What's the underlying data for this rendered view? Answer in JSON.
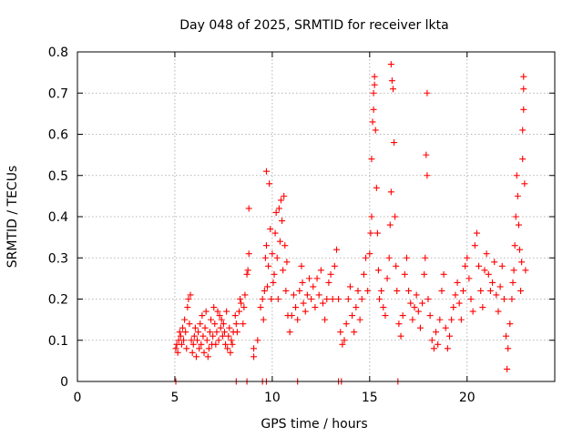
{
  "chart_data": {
    "type": "scatter",
    "title": "Day 048 of 2025, SRMTID for receiver lkta",
    "xlabel": "GPS time / hours",
    "ylabel": "SRMTID / TECUs",
    "xlim": [
      0,
      24.5
    ],
    "ylim": [
      0,
      0.8
    ],
    "x_ticks": [
      0,
      5,
      10,
      15,
      20
    ],
    "y_ticks": [
      0,
      0.1,
      0.2,
      0.3,
      0.4,
      0.5,
      0.6,
      0.7,
      0.8
    ],
    "x_tick_labels": [
      "0",
      "5",
      "10",
      "15",
      "20"
    ],
    "y_tick_labels": [
      "0",
      "0.1",
      "0.2",
      "0.3",
      "0.4",
      "0.5",
      "0.6",
      "0.7",
      "0.8"
    ],
    "grid": true,
    "marker": "plus",
    "color": "#ff0000",
    "series": [
      {
        "name": "SRMTID",
        "points": [
          [
            5.05,
            0.08
          ],
          [
            5.1,
            0.09
          ],
          [
            5.15,
            0.07
          ],
          [
            5.2,
            0.1
          ],
          [
            5.25,
            0.12
          ],
          [
            5.3,
            0.11
          ],
          [
            5.35,
            0.09
          ],
          [
            5.4,
            0.13
          ],
          [
            5.45,
            0.1
          ],
          [
            5.5,
            0.15
          ],
          [
            5.55,
            0.12
          ],
          [
            5.6,
            0.08
          ],
          [
            5.65,
            0.18
          ],
          [
            5.7,
            0.2
          ],
          [
            5.75,
            0.14
          ],
          [
            5.8,
            0.21
          ],
          [
            5.85,
            0.1
          ],
          [
            5.9,
            0.07
          ],
          [
            5.95,
            0.09
          ],
          [
            6.0,
            0.11
          ],
          [
            6.05,
            0.13
          ],
          [
            6.1,
            0.06
          ],
          [
            6.15,
            0.1
          ],
          [
            6.2,
            0.12
          ],
          [
            6.25,
            0.08
          ],
          [
            6.3,
            0.14
          ],
          [
            6.35,
            0.09
          ],
          [
            6.4,
            0.16
          ],
          [
            6.45,
            0.11
          ],
          [
            6.5,
            0.07
          ],
          [
            6.55,
            0.13
          ],
          [
            6.6,
            0.17
          ],
          [
            6.65,
            0.1
          ],
          [
            6.7,
            0.06
          ],
          [
            6.75,
            0.08
          ],
          [
            6.8,
            0.12
          ],
          [
            6.85,
            0.15
          ],
          [
            6.9,
            0.09
          ],
          [
            6.95,
            0.11
          ],
          [
            7.0,
            0.18
          ],
          [
            7.05,
            0.14
          ],
          [
            7.1,
            0.09
          ],
          [
            7.15,
            0.12
          ],
          [
            7.2,
            0.17
          ],
          [
            7.25,
            0.1
          ],
          [
            7.3,
            0.16
          ],
          [
            7.35,
            0.13
          ],
          [
            7.4,
            0.15
          ],
          [
            7.45,
            0.11
          ],
          [
            7.5,
            0.14
          ],
          [
            7.55,
            0.12
          ],
          [
            7.6,
            0.09
          ],
          [
            7.65,
            0.17
          ],
          [
            7.7,
            0.08
          ],
          [
            7.75,
            0.11
          ],
          [
            7.8,
            0.13
          ],
          [
            7.85,
            0.07
          ],
          [
            7.9,
            0.1
          ],
          [
            7.95,
            0.09
          ],
          [
            8.0,
            0.12
          ],
          [
            8.1,
            0.16
          ],
          [
            8.15,
            0.14
          ],
          [
            8.2,
            0.12
          ],
          [
            8.3,
            0.17
          ],
          [
            8.35,
            0.2
          ],
          [
            8.4,
            0.19
          ],
          [
            8.5,
            0.14
          ],
          [
            8.55,
            0.18
          ],
          [
            8.6,
            0.21
          ],
          [
            8.7,
            0.26
          ],
          [
            8.75,
            0.27
          ],
          [
            8.8,
            0.31
          ],
          [
            8.8,
            0.42
          ],
          [
            9.05,
            0.06
          ],
          [
            9.05,
            0.08
          ],
          [
            9.25,
            0.1
          ],
          [
            9.4,
            0.18
          ],
          [
            9.5,
            0.2
          ],
          [
            9.55,
            0.15
          ],
          [
            9.6,
            0.22
          ],
          [
            9.65,
            0.3
          ],
          [
            9.7,
            0.33
          ],
          [
            9.7,
            0.51
          ],
          [
            9.75,
            0.23
          ],
          [
            9.8,
            0.28
          ],
          [
            9.85,
            0.48
          ],
          [
            9.9,
            0.37
          ],
          [
            9.95,
            0.2
          ],
          [
            10.0,
            0.31
          ],
          [
            10.05,
            0.24
          ],
          [
            10.1,
            0.26
          ],
          [
            10.15,
            0.36
          ],
          [
            10.2,
            0.41
          ],
          [
            10.25,
            0.3
          ],
          [
            10.3,
            0.2
          ],
          [
            10.35,
            0.42
          ],
          [
            10.4,
            0.34
          ],
          [
            10.45,
            0.44
          ],
          [
            10.5,
            0.39
          ],
          [
            10.55,
            0.27
          ],
          [
            10.6,
            0.45
          ],
          [
            10.65,
            0.33
          ],
          [
            10.7,
            0.22
          ],
          [
            10.75,
            0.29
          ],
          [
            10.8,
            0.16
          ],
          [
            10.9,
            0.12
          ],
          [
            11.0,
            0.16
          ],
          [
            11.1,
            0.21
          ],
          [
            11.2,
            0.18
          ],
          [
            11.3,
            0.15
          ],
          [
            11.4,
            0.22
          ],
          [
            11.5,
            0.28
          ],
          [
            11.55,
            0.24
          ],
          [
            11.6,
            0.19
          ],
          [
            11.7,
            0.17
          ],
          [
            11.8,
            0.21
          ],
          [
            11.9,
            0.25
          ],
          [
            12.0,
            0.2
          ],
          [
            12.1,
            0.23
          ],
          [
            12.2,
            0.18
          ],
          [
            12.3,
            0.25
          ],
          [
            12.4,
            0.21
          ],
          [
            12.5,
            0.27
          ],
          [
            12.6,
            0.19
          ],
          [
            12.7,
            0.15
          ],
          [
            12.8,
            0.2
          ],
          [
            12.9,
            0.24
          ],
          [
            13.0,
            0.26
          ],
          [
            13.1,
            0.2
          ],
          [
            13.2,
            0.28
          ],
          [
            13.3,
            0.32
          ],
          [
            13.4,
            0.2
          ],
          [
            13.5,
            0.12
          ],
          [
            13.6,
            0.09
          ],
          [
            13.7,
            0.1
          ],
          [
            13.8,
            0.14
          ],
          [
            13.9,
            0.2
          ],
          [
            14.0,
            0.23
          ],
          [
            14.1,
            0.16
          ],
          [
            14.2,
            0.12
          ],
          [
            14.3,
            0.18
          ],
          [
            14.4,
            0.22
          ],
          [
            14.5,
            0.15
          ],
          [
            14.6,
            0.2
          ],
          [
            14.7,
            0.26
          ],
          [
            14.8,
            0.3
          ],
          [
            14.9,
            0.22
          ],
          [
            15.0,
            0.31
          ],
          [
            15.05,
            0.36
          ],
          [
            15.1,
            0.4
          ],
          [
            15.1,
            0.54
          ],
          [
            15.15,
            0.63
          ],
          [
            15.2,
            0.66
          ],
          [
            15.2,
            0.7
          ],
          [
            15.25,
            0.72
          ],
          [
            15.25,
            0.74
          ],
          [
            15.3,
            0.61
          ],
          [
            15.35,
            0.47
          ],
          [
            15.4,
            0.36
          ],
          [
            15.45,
            0.27
          ],
          [
            15.5,
            0.2
          ],
          [
            15.6,
            0.22
          ],
          [
            15.7,
            0.18
          ],
          [
            15.8,
            0.16
          ],
          [
            15.9,
            0.25
          ],
          [
            16.0,
            0.3
          ],
          [
            16.05,
            0.38
          ],
          [
            16.1,
            0.46
          ],
          [
            16.1,
            0.77
          ],
          [
            16.15,
            0.73
          ],
          [
            16.2,
            0.71
          ],
          [
            16.25,
            0.58
          ],
          [
            16.3,
            0.4
          ],
          [
            16.35,
            0.28
          ],
          [
            16.4,
            0.22
          ],
          [
            16.5,
            0.14
          ],
          [
            16.6,
            0.11
          ],
          [
            16.7,
            0.16
          ],
          [
            16.8,
            0.26
          ],
          [
            16.9,
            0.3
          ],
          [
            17.0,
            0.22
          ],
          [
            17.1,
            0.19
          ],
          [
            17.2,
            0.15
          ],
          [
            17.3,
            0.18
          ],
          [
            17.4,
            0.21
          ],
          [
            17.5,
            0.17
          ],
          [
            17.6,
            0.13
          ],
          [
            17.7,
            0.19
          ],
          [
            17.8,
            0.26
          ],
          [
            17.85,
            0.3
          ],
          [
            17.9,
            0.55
          ],
          [
            17.95,
            0.5
          ],
          [
            17.95,
            0.7
          ],
          [
            18.0,
            0.2
          ],
          [
            18.1,
            0.16
          ],
          [
            18.2,
            0.1
          ],
          [
            18.3,
            0.08
          ],
          [
            18.4,
            0.12
          ],
          [
            18.5,
            0.09
          ],
          [
            18.6,
            0.15
          ],
          [
            18.7,
            0.22
          ],
          [
            18.8,
            0.26
          ],
          [
            18.9,
            0.13
          ],
          [
            19.0,
            0.08
          ],
          [
            19.1,
            0.11
          ],
          [
            19.2,
            0.15
          ],
          [
            19.3,
            0.18
          ],
          [
            19.4,
            0.21
          ],
          [
            19.5,
            0.24
          ],
          [
            19.6,
            0.19
          ],
          [
            19.7,
            0.15
          ],
          [
            19.8,
            0.22
          ],
          [
            19.9,
            0.28
          ],
          [
            20.0,
            0.3
          ],
          [
            20.1,
            0.25
          ],
          [
            20.2,
            0.2
          ],
          [
            20.3,
            0.17
          ],
          [
            20.4,
            0.33
          ],
          [
            20.5,
            0.36
          ],
          [
            20.6,
            0.28
          ],
          [
            20.7,
            0.22
          ],
          [
            20.8,
            0.18
          ],
          [
            20.9,
            0.27
          ],
          [
            21.0,
            0.31
          ],
          [
            21.1,
            0.26
          ],
          [
            21.2,
            0.22
          ],
          [
            21.3,
            0.24
          ],
          [
            21.4,
            0.29
          ],
          [
            21.5,
            0.21
          ],
          [
            21.6,
            0.17
          ],
          [
            21.7,
            0.23
          ],
          [
            21.8,
            0.28
          ],
          [
            21.9,
            0.2
          ],
          [
            22.0,
            0.11
          ],
          [
            22.05,
            0.03
          ],
          [
            22.1,
            0.08
          ],
          [
            22.2,
            0.14
          ],
          [
            22.3,
            0.2
          ],
          [
            22.35,
            0.24
          ],
          [
            22.4,
            0.27
          ],
          [
            22.45,
            0.33
          ],
          [
            22.5,
            0.4
          ],
          [
            22.55,
            0.5
          ],
          [
            22.6,
            0.45
          ],
          [
            22.65,
            0.38
          ],
          [
            22.7,
            0.32
          ],
          [
            22.75,
            0.22
          ],
          [
            22.8,
            0.29
          ],
          [
            22.85,
            0.54
          ],
          [
            22.85,
            0.61
          ],
          [
            22.9,
            0.66
          ],
          [
            22.9,
            0.71
          ],
          [
            22.9,
            0.74
          ],
          [
            22.95,
            0.48
          ],
          [
            23.0,
            0.27
          ],
          [
            5.05,
            0.0
          ],
          [
            8.15,
            0.0
          ],
          [
            8.7,
            0.0
          ],
          [
            9.5,
            0.0
          ],
          [
            9.7,
            0.0
          ],
          [
            11.3,
            0.0
          ],
          [
            13.4,
            0.0
          ],
          [
            13.55,
            0.0
          ],
          [
            16.45,
            0.0
          ]
        ]
      }
    ]
  }
}
